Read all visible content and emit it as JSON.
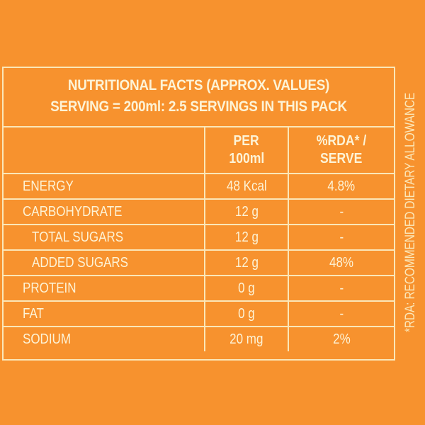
{
  "colors": {
    "background": "#f7922e",
    "text": "#fdf3d6",
    "border": "#fbe7b8"
  },
  "title": {
    "line1": "NUTRITIONAL FACTS  (APPROX. VALUES)",
    "line2": "SERVING = 200ml: 2.5 SERVINGS IN THIS PACK"
  },
  "table": {
    "headers": {
      "nutrient": "",
      "per_100ml_line1": "PER",
      "per_100ml_line2": "100ml",
      "rda_line1": "%RDA* /",
      "rda_line2": "SERVE"
    },
    "rows": [
      {
        "name": "ENERGY",
        "per_100ml": "48 Kcal",
        "rda_per_serve": "4.8%",
        "indent": false
      },
      {
        "name": "CARBOHYDRATE",
        "per_100ml": "12 g",
        "rda_per_serve": "-",
        "indent": false
      },
      {
        "name": "TOTAL SUGARS",
        "per_100ml": "12 g",
        "rda_per_serve": "-",
        "indent": true
      },
      {
        "name": "ADDED SUGARS",
        "per_100ml": "12 g",
        "rda_per_serve": "48%",
        "indent": true
      },
      {
        "name": "PROTEIN",
        "per_100ml": "0 g",
        "rda_per_serve": "-",
        "indent": false
      },
      {
        "name": "FAT",
        "per_100ml": "0 g",
        "rda_per_serve": "-",
        "indent": false
      },
      {
        "name": "SODIUM",
        "per_100ml": "20 mg",
        "rda_per_serve": "2%",
        "indent": false
      }
    ]
  },
  "footnote": "*RDA: RECOMMENDED DIETARY ALLOWANCE"
}
